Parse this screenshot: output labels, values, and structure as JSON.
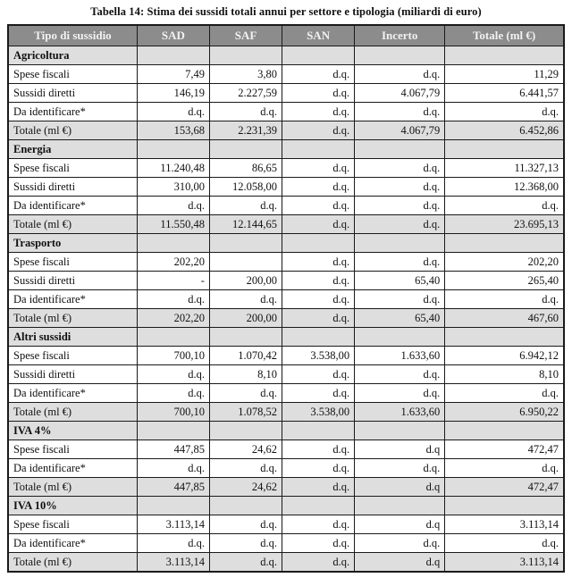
{
  "page": {
    "title": "Tabella 14: Stima dei sussidi totali annui per settore e tipologia (miliardi di euro)"
  },
  "colors": {
    "header_bg": "#8c8c8c",
    "header_text": "#f2f2f2",
    "shaded_row_bg": "#dedede",
    "border": "#1a1a1a"
  },
  "table": {
    "columns": [
      "Tipo di sussidio",
      "SAD",
      "SAF",
      "SAN",
      "Incerto",
      "Totale (ml €)"
    ],
    "missing_value_label": "d.q.",
    "sections": [
      {
        "name": "Agricoltura",
        "rows": [
          {
            "label": "Spese fiscali",
            "values": [
              "7,49",
              "3,80",
              "d.q.",
              "d.q.",
              "11,29"
            ],
            "total": false
          },
          {
            "label": "Sussidi diretti",
            "values": [
              "146,19",
              "2.227,59",
              "d.q.",
              "4.067,79",
              "6.441,57"
            ],
            "total": false
          },
          {
            "label": "Da identificare*",
            "values": [
              "d.q.",
              "d.q.",
              "d.q.",
              "d.q.",
              "d.q."
            ],
            "total": false
          },
          {
            "label": "Totale (ml €)",
            "values": [
              "153,68",
              "2.231,39",
              "d.q.",
              "4.067,79",
              "6.452,86"
            ],
            "total": true
          }
        ]
      },
      {
        "name": "Energia",
        "rows": [
          {
            "label": "Spese fiscali",
            "values": [
              "11.240,48",
              "86,65",
              "d.q.",
              "d.q.",
              "11.327,13"
            ],
            "total": false
          },
          {
            "label": "Sussidi diretti",
            "values": [
              "310,00",
              "12.058,00",
              "d.q.",
              "d.q.",
              "12.368,00"
            ],
            "total": false
          },
          {
            "label": "Da identificare*",
            "values": [
              "d.q.",
              "d.q.",
              "d.q.",
              "d.q.",
              "d.q."
            ],
            "total": false
          },
          {
            "label": "Totale (ml €)",
            "values": [
              "11.550,48",
              "12.144,65",
              "d.q.",
              "d.q.",
              "23.695,13"
            ],
            "total": true
          }
        ]
      },
      {
        "name": "Trasporto",
        "rows": [
          {
            "label": "Spese fiscali",
            "values": [
              "202,20",
              "",
              "d.q.",
              "d.q.",
              "202,20"
            ],
            "total": false
          },
          {
            "label": "Sussidi diretti",
            "values": [
              "-",
              "200,00",
              "d.q.",
              "65,40",
              "265,40"
            ],
            "total": false
          },
          {
            "label": "Da identificare*",
            "values": [
              "d.q.",
              "d.q.",
              "d.q.",
              "d.q.",
              "d.q."
            ],
            "total": false
          },
          {
            "label": "Totale (ml €)",
            "values": [
              "202,20",
              "200,00",
              "d.q.",
              "65,40",
              "467,60"
            ],
            "total": true
          }
        ]
      },
      {
        "name": "Altri sussidi",
        "rows": [
          {
            "label": "Spese fiscali",
            "values": [
              "700,10",
              "1.070,42",
              "3.538,00",
              "1.633,60",
              "6.942,12"
            ],
            "total": false
          },
          {
            "label": "Sussidi diretti",
            "values": [
              "d.q.",
              "8,10",
              "d.q.",
              "d.q.",
              "8,10"
            ],
            "total": false
          },
          {
            "label": "Da identificare*",
            "values": [
              "d.q.",
              "d.q.",
              "d.q.",
              "d.q.",
              "d.q."
            ],
            "total": false
          },
          {
            "label": "Totale (ml €)",
            "values": [
              "700,10",
              "1.078,52",
              "3.538,00",
              "1.633,60",
              "6.950,22"
            ],
            "total": true
          }
        ]
      },
      {
        "name": "IVA 4%",
        "rows": [
          {
            "label": "Spese fiscali",
            "values": [
              "447,85",
              "24,62",
              "d.q.",
              "d.q",
              "472,47"
            ],
            "total": false
          },
          {
            "label": "Da identificare*",
            "values": [
              "d.q.",
              "d.q.",
              "d.q.",
              "d.q.",
              "d.q."
            ],
            "total": false
          },
          {
            "label": "Totale (ml €)",
            "values": [
              "447,85",
              "24,62",
              "d.q.",
              "d.q",
              "472,47"
            ],
            "total": true
          }
        ]
      },
      {
        "name": "IVA 10%",
        "rows": [
          {
            "label": "Spese fiscali",
            "values": [
              "3.113,14",
              "d.q.",
              "d.q.",
              "d.q",
              "3.113,14"
            ],
            "total": false
          },
          {
            "label": "Da identificare*",
            "values": [
              "d.q.",
              "d.q.",
              "d.q.",
              "d.q.",
              "d.q."
            ],
            "total": false
          },
          {
            "label": "Totale (ml €)",
            "values": [
              "3.113,14",
              "d.q.",
              "d.q.",
              "d.q",
              "3.113,14"
            ],
            "total": true
          }
        ]
      }
    ]
  }
}
